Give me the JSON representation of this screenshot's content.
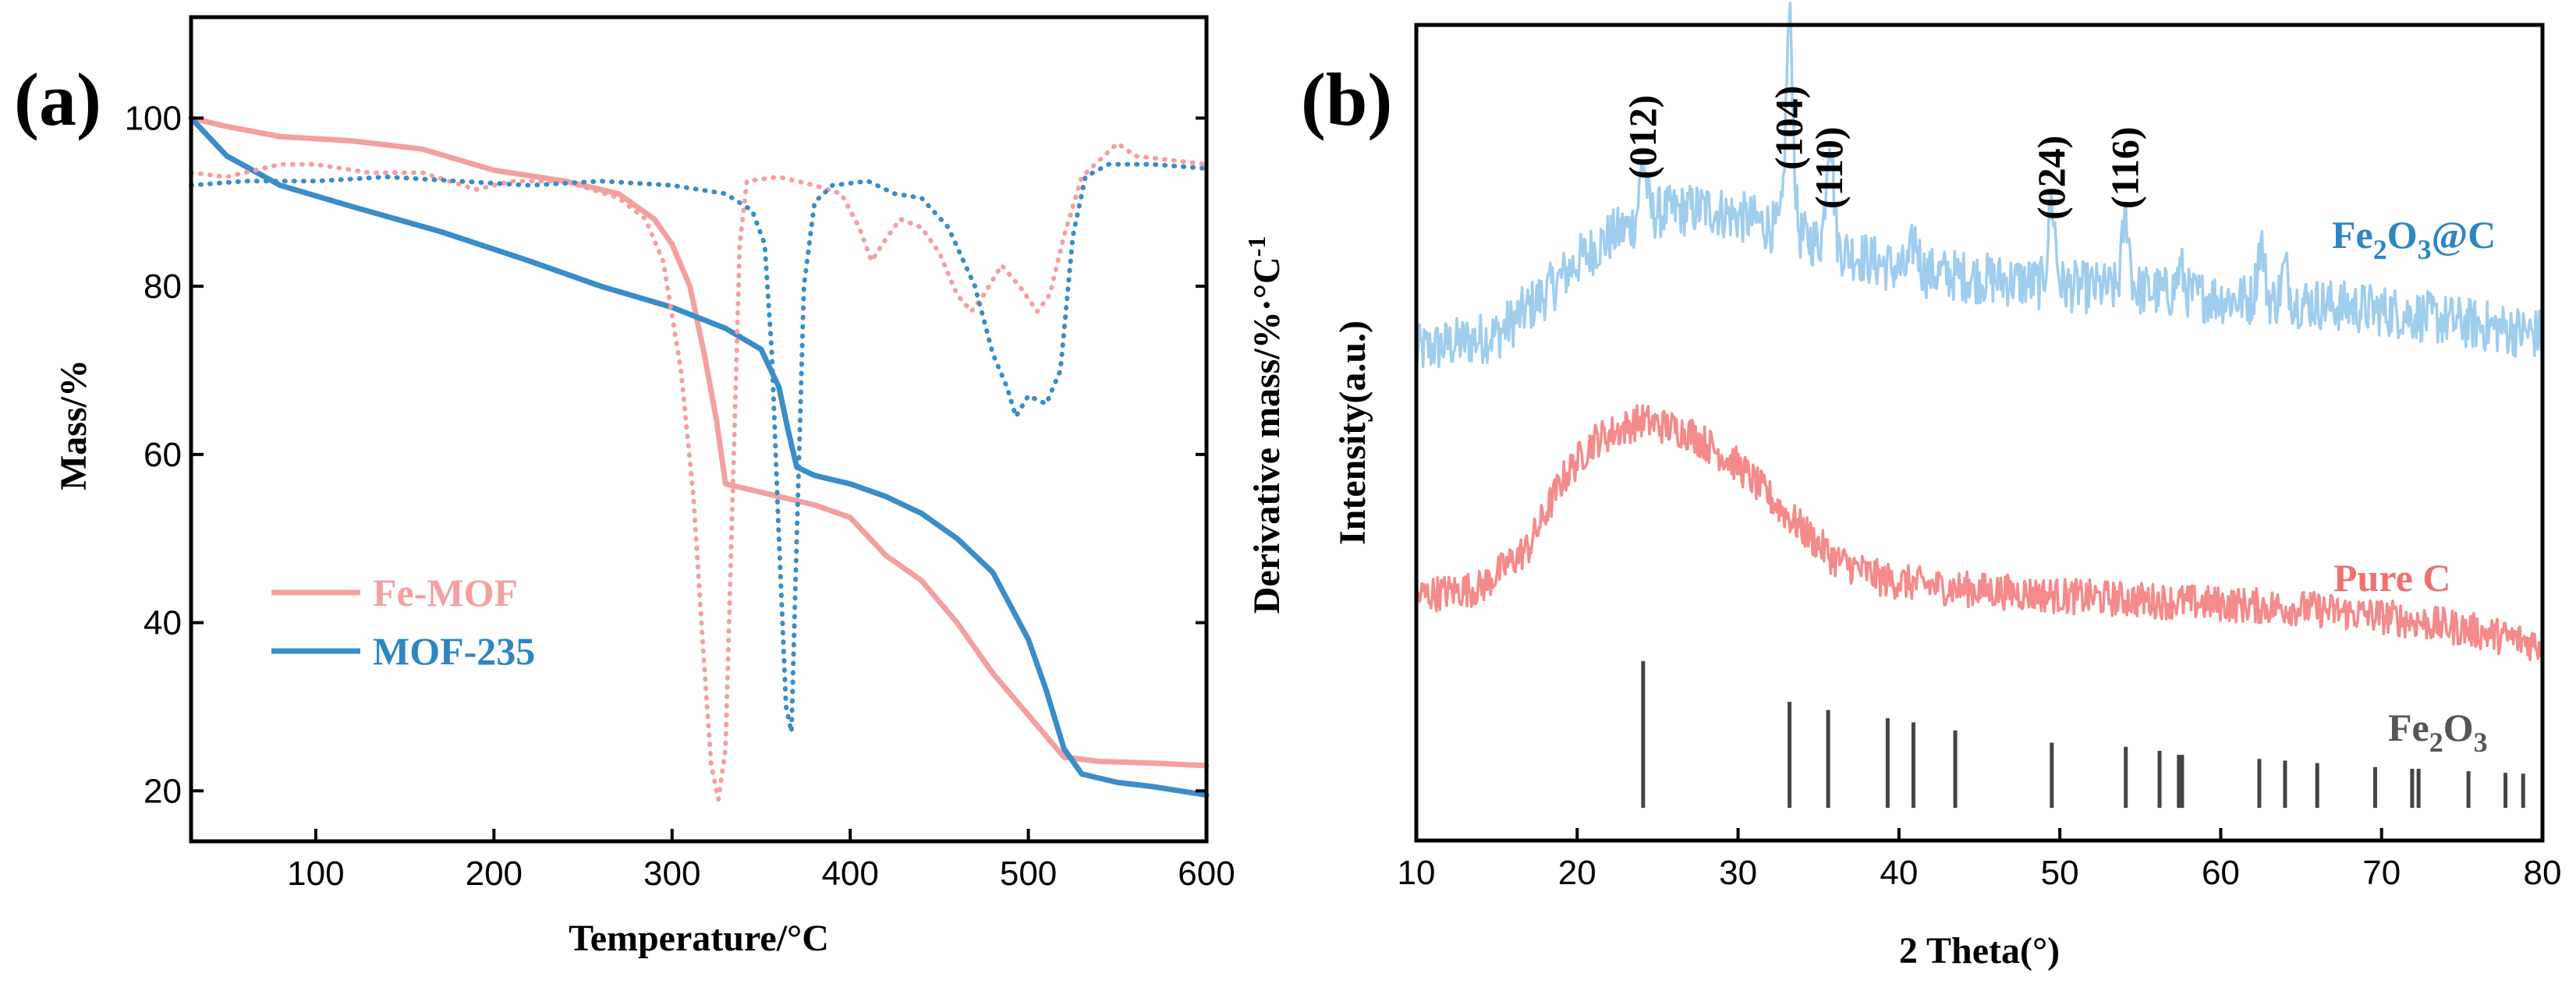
{
  "chart_data": [
    {
      "panel_label": "(a)",
      "type": "line",
      "xlabel": "Temperature/°C",
      "ylabel_left": "Mass/%",
      "ylabel_right": "Derivative mass/%·°C",
      "ylabel_right_sup": "-1",
      "xlim": [
        30,
        600
      ],
      "ylim": [
        14,
        112
      ],
      "xticks": [
        100,
        200,
        300,
        400,
        500,
        600
      ],
      "yticks": [
        20,
        40,
        60,
        80,
        100
      ],
      "dtg_ylim": [
        14,
        112
      ],
      "legend": [
        "Fe-MOF",
        "MOF-235"
      ],
      "series": [
        {
          "name": "Fe-MOF",
          "color": "#f4a0a0",
          "style": "solid",
          "kind": "mass",
          "points": [
            [
              30,
              100
            ],
            [
              50,
              99
            ],
            [
              80,
              97.8
            ],
            [
              120,
              97.3
            ],
            [
              160,
              96.3
            ],
            [
              200,
              93.8
            ],
            [
              240,
              92.5
            ],
            [
              270,
              91
            ],
            [
              290,
              88
            ],
            [
              300,
              85
            ],
            [
              310,
              80
            ],
            [
              318,
              72
            ],
            [
              325,
              64
            ],
            [
              330,
              56.5
            ],
            [
              340,
              56
            ],
            [
              360,
              55
            ],
            [
              380,
              54
            ],
            [
              400,
              52.5
            ],
            [
              420,
              48
            ],
            [
              440,
              45
            ],
            [
              460,
              40
            ],
            [
              480,
              34
            ],
            [
              500,
              29
            ],
            [
              520,
              24
            ],
            [
              540,
              23.5
            ],
            [
              570,
              23.3
            ],
            [
              600,
              23
            ]
          ]
        },
        {
          "name": "MOF-235",
          "color": "#3a8dc8",
          "style": "solid",
          "kind": "mass",
          "points": [
            [
              30,
              100
            ],
            [
              50,
              95.5
            ],
            [
              80,
              92
            ],
            [
              120,
              89.5
            ],
            [
              170,
              86.5
            ],
            [
              220,
              83
            ],
            [
              260,
              80
            ],
            [
              300,
              77.5
            ],
            [
              330,
              75
            ],
            [
              350,
              72.5
            ],
            [
              360,
              68
            ],
            [
              365,
              63
            ],
            [
              370,
              58.5
            ],
            [
              380,
              57.5
            ],
            [
              400,
              56.5
            ],
            [
              420,
              55
            ],
            [
              440,
              53
            ],
            [
              460,
              50
            ],
            [
              480,
              46
            ],
            [
              500,
              38
            ],
            [
              510,
              32
            ],
            [
              520,
              25
            ],
            [
              530,
              22
            ],
            [
              550,
              21
            ],
            [
              570,
              20.5
            ],
            [
              600,
              19.5
            ]
          ]
        },
        {
          "name": "Fe-MOF DTG",
          "color": "#f4a0a0",
          "style": "dotted",
          "kind": "dtg",
          "points": [
            [
              30,
              93.5
            ],
            [
              50,
              93
            ],
            [
              80,
              94.5
            ],
            [
              100,
              94.5
            ],
            [
              130,
              93.5
            ],
            [
              160,
              93.5
            ],
            [
              190,
              91.5
            ],
            [
              210,
              92.5
            ],
            [
              240,
              92.5
            ],
            [
              270,
              90.5
            ],
            [
              285,
              88
            ],
            [
              295,
              83
            ],
            [
              305,
              70
            ],
            [
              312,
              55
            ],
            [
              318,
              35
            ],
            [
              322,
              23
            ],
            [
              326,
              19
            ],
            [
              330,
              25
            ],
            [
              334,
              55
            ],
            [
              338,
              85
            ],
            [
              342,
              92.5
            ],
            [
              360,
              93
            ],
            [
              380,
              92
            ],
            [
              395,
              91
            ],
            [
              405,
              87
            ],
            [
              412,
              83
            ],
            [
              418,
              85
            ],
            [
              428,
              88
            ],
            [
              440,
              87
            ],
            [
              450,
              84
            ],
            [
              460,
              79
            ],
            [
              468,
              77
            ],
            [
              475,
              79
            ],
            [
              485,
              82.5
            ],
            [
              495,
              80
            ],
            [
              505,
              77
            ],
            [
              512,
              79
            ],
            [
              520,
              86
            ],
            [
              530,
              93
            ],
            [
              540,
              95
            ],
            [
              550,
              97
            ],
            [
              560,
              95.5
            ],
            [
              580,
              95
            ],
            [
              600,
              94.5
            ]
          ]
        },
        {
          "name": "MOF-235 DTG",
          "color": "#3a8dc8",
          "style": "dotted",
          "kind": "dtg",
          "points": [
            [
              30,
              92
            ],
            [
              60,
              92.5
            ],
            [
              100,
              92.5
            ],
            [
              140,
              93
            ],
            [
              180,
              92.5
            ],
            [
              220,
              92
            ],
            [
              260,
              92.5
            ],
            [
              300,
              92
            ],
            [
              330,
              91
            ],
            [
              345,
              89
            ],
            [
              352,
              85
            ],
            [
              356,
              72
            ],
            [
              360,
              50
            ],
            [
              364,
              30
            ],
            [
              367,
              27
            ],
            [
              370,
              50
            ],
            [
              374,
              80
            ],
            [
              380,
              90
            ],
            [
              390,
              92
            ],
            [
              410,
              92.5
            ],
            [
              425,
              91
            ],
            [
              440,
              90.5
            ],
            [
              455,
              87
            ],
            [
              470,
              80
            ],
            [
              480,
              72
            ],
            [
              488,
              68
            ],
            [
              493,
              64.5
            ],
            [
              500,
              67
            ],
            [
              510,
              66
            ],
            [
              518,
              70
            ],
            [
              525,
              86
            ],
            [
              532,
              93
            ],
            [
              545,
              94.5
            ],
            [
              570,
              94.5
            ],
            [
              600,
              94
            ]
          ]
        }
      ]
    },
    {
      "panel_label": "(b)",
      "type": "line",
      "xlabel": "2 Theta(°)",
      "ylabel": "Intensity(a.u.)",
      "xlim": [
        10,
        80
      ],
      "ylim": [
        0,
        100
      ],
      "xticks": [
        10,
        20,
        30,
        40,
        50,
        60,
        70,
        80
      ],
      "peak_labels": [
        {
          "text": "(012)",
          "two_theta": 24.1
        },
        {
          "text": "(104)",
          "two_theta": 33.2
        },
        {
          "text": "(110)",
          "two_theta": 35.7
        },
        {
          "text": "(024)",
          "two_theta": 49.5
        },
        {
          "text": "(116)",
          "two_theta": 54.1
        }
      ],
      "series": [
        {
          "name": "Fe₂O₃@C",
          "name_main": "Fe",
          "name_sub1": "2",
          "name_mid": "O",
          "name_sub2": "3",
          "name_tail": "@C",
          "color": "#9fcdee",
          "baseline": [
            [
              10,
              60
            ],
            [
              15,
              62
            ],
            [
              18,
              67
            ],
            [
              20,
              71
            ],
            [
              22,
              74
            ],
            [
              25,
              77
            ],
            [
              28,
              77.5
            ],
            [
              31,
              76
            ],
            [
              34,
              74
            ],
            [
              37,
              72
            ],
            [
              40,
              70
            ],
            [
              45,
              69
            ],
            [
              50,
              68
            ],
            [
              55,
              67.5
            ],
            [
              60,
              66.5
            ],
            [
              65,
              66
            ],
            [
              70,
              65
            ],
            [
              75,
              63.5
            ],
            [
              80,
              62
            ]
          ],
          "peaks": [
            [
              24.1,
              7
            ],
            [
              33.2,
              26
            ],
            [
              35.7,
              14
            ],
            [
              41,
              4
            ],
            [
              49.5,
              10
            ],
            [
              54.1,
              9
            ],
            [
              57.5,
              3
            ],
            [
              62.5,
              7
            ],
            [
              64,
              4
            ]
          ],
          "noise": 3.2
        },
        {
          "name": "Pure C",
          "color": "#f58a8a",
          "baseline": [
            [
              10,
              30
            ],
            [
              14,
              31
            ],
            [
              17,
              36
            ],
            [
              19,
              44
            ],
            [
              21,
              49
            ],
            [
              24,
              51.5
            ],
            [
              27,
              50
            ],
            [
              30,
              46
            ],
            [
              33,
              40
            ],
            [
              36,
              34.5
            ],
            [
              39,
              32
            ],
            [
              43,
              31
            ],
            [
              50,
              30
            ],
            [
              55,
              29.5
            ],
            [
              60,
              29
            ],
            [
              65,
              28.5
            ],
            [
              70,
              27.5
            ],
            [
              75,
              26
            ],
            [
              80,
              24
            ]
          ],
          "peaks": [],
          "noise": 2.2
        },
        {
          "name": "Fe₂O₃",
          "name_main": "Fe",
          "name_sub1": "2",
          "name_mid": "O",
          "name_sub2": "3",
          "color": "#444444",
          "type": "reference_bars",
          "bars": [
            [
              24.1,
              18
            ],
            [
              33.2,
              13
            ],
            [
              35.6,
              12
            ],
            [
              39.3,
              11
            ],
            [
              40.9,
              10.5
            ],
            [
              43.5,
              9.5
            ],
            [
              49.5,
              8
            ],
            [
              54.1,
              7.5
            ],
            [
              56.2,
              7
            ],
            [
              57.4,
              6.5
            ],
            [
              57.6,
              6.5
            ],
            [
              62.4,
              6
            ],
            [
              64.0,
              5.8
            ],
            [
              66.0,
              5.5
            ],
            [
              69.6,
              5
            ],
            [
              71.9,
              4.8
            ],
            [
              72.3,
              4.8
            ],
            [
              75.4,
              4.5
            ],
            [
              77.7,
              4.3
            ],
            [
              78.8,
              4.2
            ]
          ]
        }
      ]
    }
  ]
}
